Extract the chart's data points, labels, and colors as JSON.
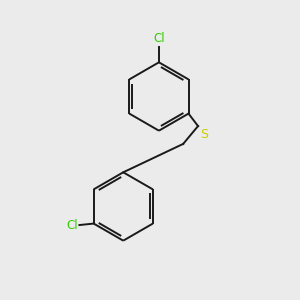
{
  "background_color": "#ebebeb",
  "bond_color": "#1a1a1a",
  "cl_color": "#33cc00",
  "s_color": "#cccc00",
  "s_label": "S",
  "cl_label": "Cl",
  "figsize": [
    3.0,
    3.0
  ],
  "dpi": 100,
  "lw": 1.4
}
